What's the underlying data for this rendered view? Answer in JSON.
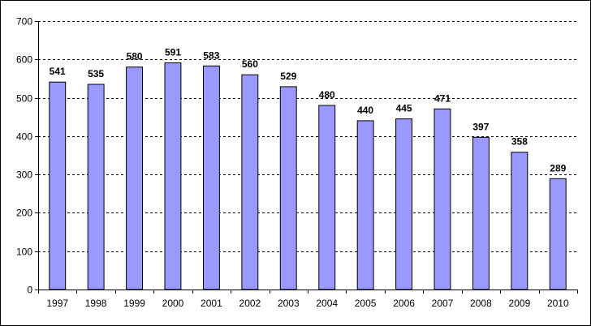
{
  "chart_data": {
    "type": "bar",
    "title": "",
    "xlabel": "",
    "ylabel": "",
    "categories": [
      "1997",
      "1998",
      "1999",
      "2000",
      "2001",
      "2002",
      "2003",
      "2004",
      "2005",
      "2006",
      "2007",
      "2008",
      "2009",
      "2010"
    ],
    "values": [
      541,
      535,
      580,
      591,
      583,
      560,
      529,
      480,
      440,
      445,
      471,
      397,
      358,
      289
    ],
    "data_labels": [
      "541",
      "535",
      "580",
      "591",
      "583",
      "560",
      "529",
      "480",
      "440",
      "445",
      "471",
      "397",
      "358",
      "289"
    ],
    "ylim": [
      0,
      700
    ],
    "y_ticks": [
      0,
      100,
      200,
      300,
      400,
      500,
      600,
      700
    ],
    "y_tick_labels": [
      "0",
      "100",
      "200",
      "300",
      "400",
      "500",
      "600",
      "700"
    ],
    "grid": "horizontal-dashed",
    "legend": "none",
    "colors": {
      "bar_fill": "#9999ff",
      "bar_stroke": "#000000",
      "grid": "#000000",
      "axis": "#000000"
    }
  }
}
